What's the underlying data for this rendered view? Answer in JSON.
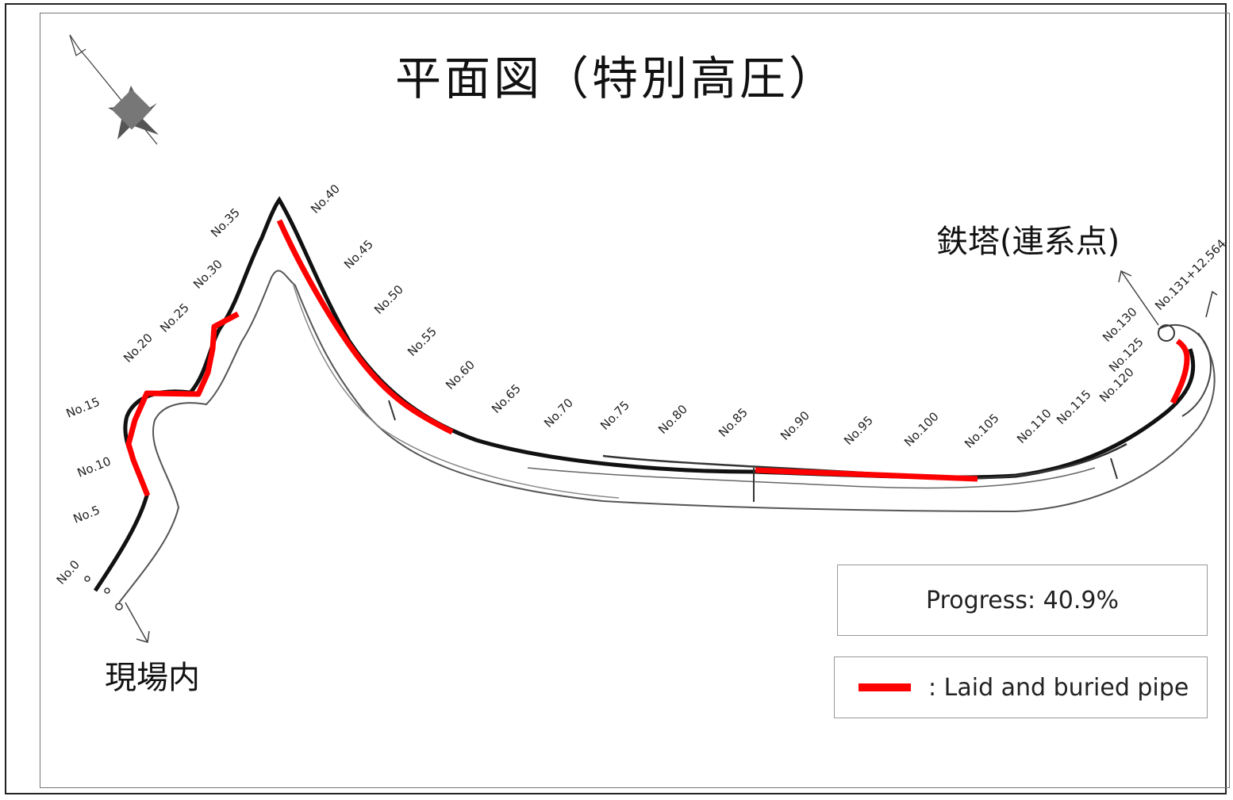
{
  "title": "平面図（特別高圧）",
  "tower_label": "鉄塔(連系点)",
  "site_label": "現場内",
  "progress": {
    "text": "Progress: 40.9%",
    "value_percent": 40.9
  },
  "legend": {
    "label": ": Laid and buried pipe",
    "color": "#ff0000"
  },
  "stations": [
    "No.0",
    "No.5",
    "No.10",
    "No.15",
    "No.20",
    "No.25",
    "No.30",
    "No.35",
    "No.40",
    "No.45",
    "No.50",
    "No.55",
    "No.60",
    "No.65",
    "No.70",
    "No.75",
    "No.80",
    "No.85",
    "No.90",
    "No.95",
    "No.100",
    "No.105",
    "No.110",
    "No.115",
    "No.120",
    "No.125",
    "No.130",
    "No.131+12.564"
  ],
  "icons": {
    "north": "compass-icon"
  }
}
